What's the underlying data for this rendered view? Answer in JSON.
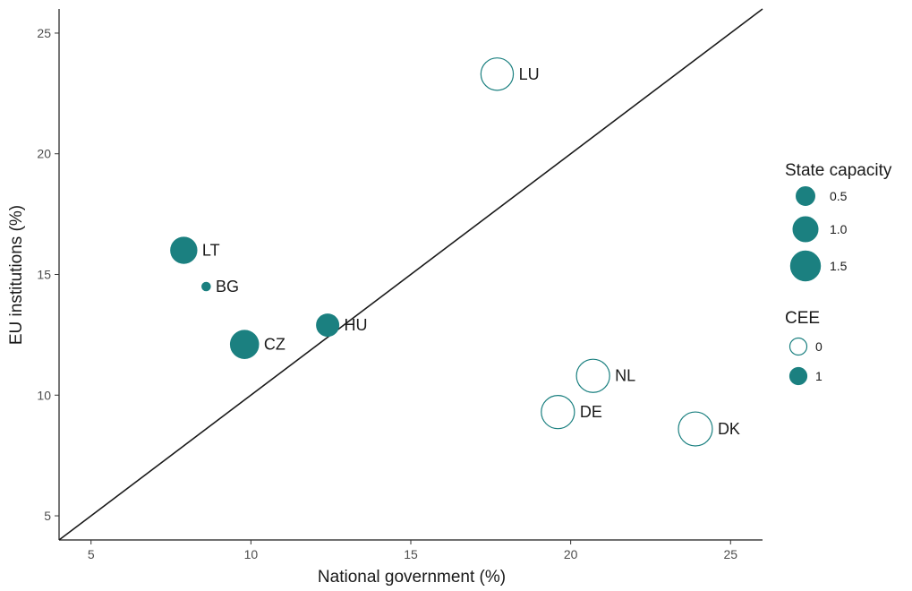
{
  "chart_data": {
    "type": "scatter",
    "xlabel": "National government (%)",
    "ylabel": "EU institutions (%)",
    "xlim": [
      4,
      26
    ],
    "ylim": [
      4,
      26
    ],
    "xticks": [
      "5",
      "10",
      "15",
      "20",
      "25"
    ],
    "yticks": [
      "5",
      "10",
      "15",
      "20",
      "25"
    ],
    "grid": false,
    "reference_line": "y = x",
    "color": "#1b8080",
    "points": [
      {
        "label": "LU",
        "x": 17.7,
        "y": 23.3,
        "state_capacity": 1.8,
        "cee": 0
      },
      {
        "label": "LT",
        "x": 7.9,
        "y": 16.0,
        "state_capacity": 1.1,
        "cee": 1
      },
      {
        "label": "BG",
        "x": 8.6,
        "y": 14.5,
        "state_capacity": 0.05,
        "cee": 1
      },
      {
        "label": "CZ",
        "x": 9.8,
        "y": 12.1,
        "state_capacity": 1.3,
        "cee": 1
      },
      {
        "label": "HU",
        "x": 12.4,
        "y": 12.9,
        "state_capacity": 0.75,
        "cee": 1
      },
      {
        "label": "NL",
        "x": 20.7,
        "y": 10.8,
        "state_capacity": 1.9,
        "cee": 0
      },
      {
        "label": "DE",
        "x": 19.6,
        "y": 9.3,
        "state_capacity": 1.9,
        "cee": 0
      },
      {
        "label": "DK",
        "x": 23.9,
        "y": 8.6,
        "state_capacity": 2.0,
        "cee": 0
      }
    ],
    "legend": {
      "placement": "right",
      "size": {
        "title": "State capacity",
        "entries": [
          {
            "label": "0.5",
            "value": 0.5
          },
          {
            "label": "1.0",
            "value": 1.0
          },
          {
            "label": "1.5",
            "value": 1.5
          }
        ]
      },
      "fill": {
        "title": "CEE",
        "entries": [
          {
            "label": "0",
            "cee": 0
          },
          {
            "label": "1",
            "cee": 1
          }
        ]
      }
    }
  }
}
